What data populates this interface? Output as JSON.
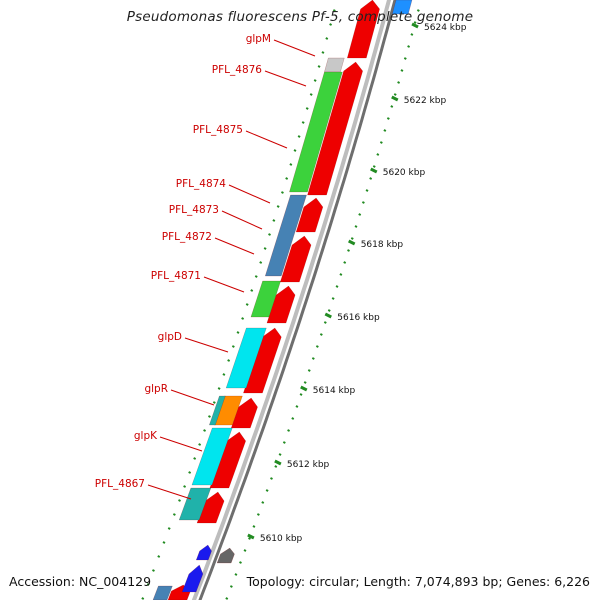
{
  "title": "Pseudomonas fluorescens Pf-5, complete genome",
  "footer": {
    "accession": "Accession: NC_004129",
    "summary": "Topology: circular; Length: 7,074,893 bp; Genes: 6,226"
  },
  "scale": {
    "labels": [
      "5624 kbp",
      "5622 kbp",
      "5620 kbp",
      "5618 kbp",
      "5616 kbp",
      "5614 kbp",
      "5612 kbp",
      "5610 kbp"
    ]
  },
  "genes": [
    {
      "name": "glpM",
      "color": "#c8c8c8"
    },
    {
      "name": "PFL_4876",
      "color": "#3cd23c"
    },
    {
      "name": "PFL_4875",
      "color": "#3cd23c"
    },
    {
      "name": "PFL_4874",
      "color": "#4682b4"
    },
    {
      "name": "PFL_4873",
      "color": "#4682b4"
    },
    {
      "name": "PFL_4872",
      "color": "#4682b4"
    },
    {
      "name": "PFL_4871",
      "color": "#3cd23c"
    },
    {
      "name": "glpD",
      "color": "#00e5ee"
    },
    {
      "name": "glpR",
      "color": "#ff8c00"
    },
    {
      "name": "glpK",
      "color": "#00e5ee"
    },
    {
      "name": "PFL_4867",
      "color": "#20b2aa"
    }
  ],
  "colors": {
    "label": "#cc0000",
    "forward_strand": "#ee0000",
    "backbone": "#808080",
    "ticks": "#228b22"
  }
}
